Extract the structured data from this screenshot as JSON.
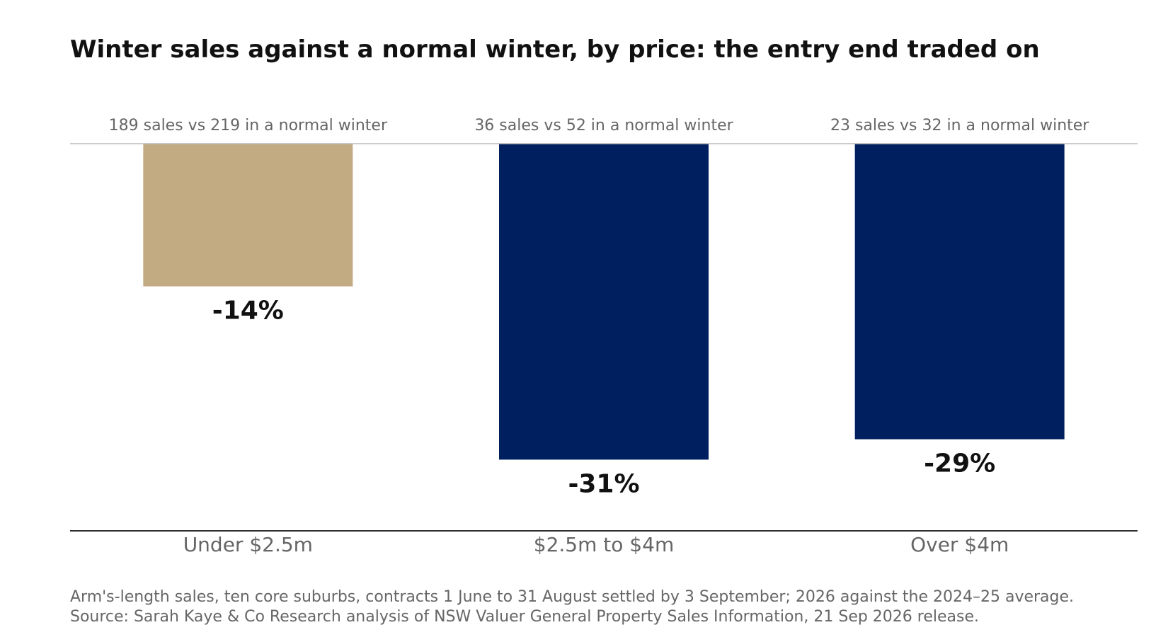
{
  "chart_data": {
    "type": "bar",
    "title": "Winter sales against a normal winter, by price: the entry end traded on",
    "categories": [
      "Under $2.5m",
      "$2.5m to $4m",
      "Over $4m"
    ],
    "values": [
      -14,
      -31,
      -29
    ],
    "value_labels": [
      "-14%",
      "-31%",
      "-29%"
    ],
    "bar_notes": [
      "189 sales vs 219 in a normal winter",
      "36 sales vs 52 in a normal winter",
      "23 sales vs 32 in a normal winter"
    ],
    "unit": "%",
    "ylim": [
      -35,
      0
    ],
    "highlight_category": "Under $2.5m",
    "grid": false,
    "legend": "none"
  },
  "colors": {
    "highlight": "#C2AB83",
    "default": "#001F5E",
    "title": "#111111",
    "muted_text": "#666666",
    "baseline": "#BBBBBB",
    "axis": "#111111"
  },
  "footnote": {
    "line1": "Arm's-length sales, ten core suburbs, contracts 1 June to 31 August settled by 3 September; 2026 against the 2024–25 average.",
    "line2": "Source: Sarah Kaye & Co Research analysis of NSW Valuer General Property Sales Information, 21 Sep 2026 release."
  }
}
